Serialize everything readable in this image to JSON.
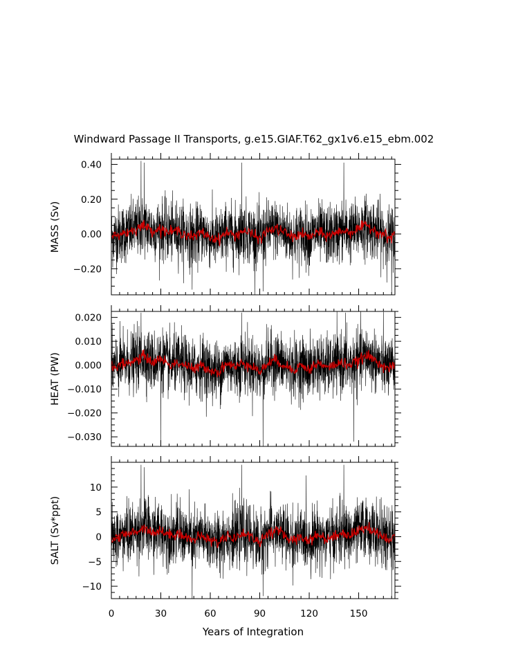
{
  "title": "Windward Passage II Transports, g.e15.GIAF.T62_gx1v6.e15_ebm.002",
  "xlabel": "Years of Integration",
  "chart_data": [
    {
      "type": "line",
      "ylabel": "MASS (Sv)",
      "xlim": [
        0,
        172
      ],
      "ylim": [
        -0.35,
        0.43
      ],
      "yticks": [
        0.4,
        0.2,
        0.0,
        -0.2
      ],
      "ytick_labels": [
        "0.40",
        "0.20",
        "0.00",
        "−0.20"
      ],
      "xticks": [
        0,
        30,
        60,
        90,
        120,
        150
      ],
      "series": [
        {
          "role": "monthly",
          "color": "#000000",
          "noise_sd": 0.085,
          "peaks": [
            [
              18,
              0.42
            ],
            [
              20,
              0.41
            ],
            [
              79,
              0.41
            ],
            [
              141,
              0.41
            ],
            [
              92,
              -0.33
            ],
            [
              49,
              -0.32
            ],
            [
              170,
              -0.35
            ]
          ]
        },
        {
          "role": "annual mean",
          "color": "#cc0000",
          "x": [
            0,
            5,
            10,
            15,
            20,
            25,
            30,
            35,
            40,
            45,
            50,
            55,
            60,
            65,
            70,
            75,
            80,
            85,
            90,
            95,
            100,
            105,
            110,
            115,
            120,
            125,
            130,
            135,
            140,
            145,
            150,
            155,
            160,
            165,
            170
          ],
          "y": [
            -0.02,
            0.0,
            0.01,
            0.03,
            0.05,
            0.02,
            0.03,
            0.01,
            0.02,
            0.0,
            -0.02,
            0.01,
            -0.02,
            -0.03,
            0.01,
            -0.01,
            0.02,
            0.0,
            -0.03,
            0.02,
            0.03,
            0.01,
            -0.02,
            0.0,
            -0.02,
            0.01,
            -0.01,
            0.0,
            0.02,
            0.01,
            0.03,
            0.05,
            0.02,
            0.0,
            -0.03
          ]
        }
      ]
    },
    {
      "type": "line",
      "ylabel": "HEAT (PW)",
      "xlim": [
        0,
        172
      ],
      "ylim": [
        -0.034,
        0.0225
      ],
      "yticks": [
        0.02,
        0.01,
        0.0,
        -0.01,
        -0.02,
        -0.03
      ],
      "ytick_labels": [
        "0.020",
        "0.010",
        "0.000",
        "−0.010",
        "−0.020",
        "−0.030"
      ],
      "xticks": [
        0,
        30,
        60,
        90,
        120,
        150
      ],
      "series": [
        {
          "role": "monthly",
          "color": "#000000",
          "noise_sd": 0.0062,
          "peaks": [
            [
              18,
              0.022
            ],
            [
              79,
              0.022
            ],
            [
              142,
              0.022
            ],
            [
              30,
              -0.032
            ],
            [
              92,
              -0.034
            ],
            [
              147,
              -0.032
            ]
          ]
        },
        {
          "role": "annual mean",
          "color": "#cc0000",
          "x": [
            0,
            5,
            10,
            15,
            20,
            25,
            30,
            35,
            40,
            45,
            50,
            55,
            60,
            65,
            70,
            75,
            80,
            85,
            90,
            95,
            100,
            105,
            110,
            115,
            120,
            125,
            130,
            135,
            140,
            145,
            150,
            155,
            160,
            165,
            170
          ],
          "y": [
            -0.001,
            0.0,
            0.001,
            0.002,
            0.004,
            0.001,
            0.003,
            0.0,
            0.001,
            0.0,
            -0.002,
            0.0,
            -0.002,
            -0.003,
            0.001,
            -0.001,
            0.001,
            0.0,
            -0.003,
            0.001,
            0.002,
            0.0,
            -0.002,
            0.0,
            -0.002,
            0.001,
            -0.001,
            0.0,
            0.001,
            0.0,
            0.002,
            0.004,
            0.002,
            0.0,
            -0.002
          ]
        }
      ]
    },
    {
      "type": "line",
      "ylabel": "SALT (Sv*ppt)",
      "xlim": [
        0,
        172
      ],
      "ylim": [
        -12.5,
        15
      ],
      "yticks": [
        10,
        5,
        0,
        -5,
        -10
      ],
      "ytick_labels": [
        "10",
        "5",
        "0",
        "−5",
        "−10"
      ],
      "xticks": [
        0,
        30,
        60,
        90,
        120,
        150
      ],
      "xtick_labels": [
        "0",
        "30",
        "60",
        "90",
        "120",
        "150"
      ],
      "series": [
        {
          "role": "monthly",
          "color": "#000000",
          "noise_sd": 3.0,
          "peaks": [
            [
              18,
              14.5
            ],
            [
              20,
              14.0
            ],
            [
              79,
              14.5
            ],
            [
              141,
              14.5
            ],
            [
              49,
              -12.5
            ],
            [
              92,
              -12.0
            ],
            [
              170,
              -12.5
            ]
          ]
        },
        {
          "role": "annual mean",
          "color": "#cc0000",
          "x": [
            0,
            5,
            10,
            15,
            20,
            25,
            30,
            35,
            40,
            45,
            50,
            55,
            60,
            65,
            70,
            75,
            80,
            85,
            90,
            95,
            100,
            105,
            110,
            115,
            120,
            125,
            130,
            135,
            140,
            145,
            150,
            155,
            160,
            165,
            170
          ],
          "y": [
            -0.5,
            0.0,
            0.5,
            1.0,
            2.0,
            0.8,
            1.2,
            0.3,
            0.8,
            0.0,
            -0.8,
            0.3,
            -0.8,
            -1.2,
            0.4,
            -0.4,
            0.8,
            0.0,
            -1.2,
            0.8,
            1.2,
            0.3,
            -0.8,
            0.0,
            -0.8,
            0.4,
            -0.4,
            0.0,
            0.8,
            0.3,
            1.2,
            2.0,
            0.8,
            0.0,
            -1.2
          ]
        }
      ]
    }
  ]
}
